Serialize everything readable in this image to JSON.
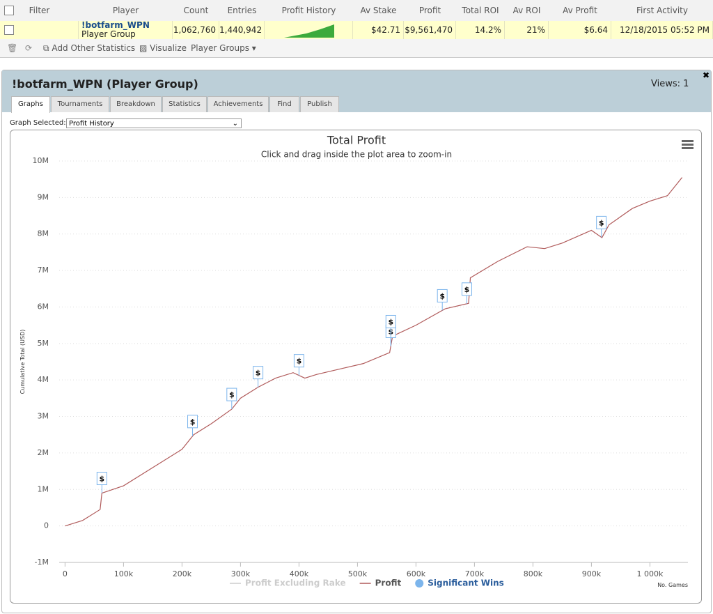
{
  "table": {
    "headers": [
      "Filter",
      "Player",
      "Count",
      "Entries",
      "Profit History",
      "Av Stake",
      "Profit",
      "Total ROI",
      "Av ROI",
      "Av Profit",
      "First Activity"
    ],
    "row": {
      "player": "!botfarm_WPN",
      "player_type": "Player Group",
      "count": "1,062,760",
      "entries": "1,440,942",
      "av_stake": "$42.71",
      "profit": "$9,561,470",
      "total_roi": "14.2%",
      "av_roi": "21%",
      "av_profit": "$6.64",
      "first_activity": "12/18/2015 05:52 PM"
    }
  },
  "toolbar": [
    "Add Other Statistics",
    "Visualize",
    "Player Groups"
  ],
  "panel": {
    "title": "!botfarm_WPN (Player Group)",
    "views": "Views: 1",
    "tabs": [
      "Graphs",
      "Tournaments",
      "Breakdown",
      "Statistics",
      "Achievements",
      "Find",
      "Publish"
    ],
    "graph_selected_label": "Graph Selected:",
    "graph_selected": "Profit History"
  },
  "chart_data": {
    "type": "line",
    "title": "Total Profit",
    "subtitle": "Click and drag inside the plot area to zoom-in",
    "y_label": "Cumulative Total (USD)",
    "x_label": "No. Games",
    "xlim": [
      -10000,
      1065000
    ],
    "ylim": [
      -1000000,
      10000000
    ],
    "xticks": [
      0,
      {
        "value": 100000,
        "label": "100k"
      },
      {
        "value": 200000,
        "label": "200k"
      },
      {
        "value": 300000,
        "label": "300k"
      },
      {
        "value": 400000,
        "label": "400k"
      },
      {
        "value": 500000,
        "label": "500k"
      },
      {
        "value": 600000,
        "label": "600k"
      },
      {
        "value": 700000,
        "label": "700k"
      },
      {
        "value": 800000,
        "label": "800k"
      },
      {
        "value": 900000,
        "label": "900k"
      },
      {
        "value": 1000000,
        "label": "1 000k"
      }
    ],
    "yticks": [
      {
        "value": -1000000,
        "label": "-1M"
      },
      0,
      {
        "value": 1000000,
        "label": "1M"
      },
      {
        "value": 2000000,
        "label": "2M"
      },
      {
        "value": 3000000,
        "label": "3M"
      },
      {
        "value": 4000000,
        "label": "4M"
      },
      {
        "value": 5000000,
        "label": "5M"
      },
      {
        "value": 6000000,
        "label": "6M"
      },
      {
        "value": 7000000,
        "label": "7M"
      },
      {
        "value": 8000000,
        "label": "8M"
      },
      {
        "value": 9000000,
        "label": "9M"
      },
      {
        "value": 10000000,
        "label": "10M"
      }
    ],
    "grid": true,
    "x": [
      0,
      30000,
      60000,
      63000,
      100000,
      150000,
      200000,
      220000,
      250000,
      285000,
      300000,
      330000,
      360000,
      390000,
      410000,
      430000,
      470000,
      510000,
      555000,
      560000,
      600000,
      650000,
      690000,
      693000,
      740000,
      790000,
      820000,
      850000,
      900000,
      918000,
      930000,
      970000,
      1000000,
      1030000,
      1055000
    ],
    "series": [
      {
        "name": "Profit Excluding Rake",
        "color": "#cccccc",
        "visible": false
      },
      {
        "name": "Profit",
        "color": "#b05a5a",
        "values": [
          0,
          150000,
          450000,
          900000,
          1100000,
          1600000,
          2100000,
          2500000,
          2800000,
          3200000,
          3500000,
          3800000,
          4050000,
          4200000,
          4050000,
          4150000,
          4300000,
          4450000,
          4750000,
          5200000,
          5500000,
          5950000,
          6100000,
          6800000,
          7250000,
          7650000,
          7600000,
          7750000,
          8100000,
          7900000,
          8250000,
          8700000,
          8900000,
          9050000,
          9550000
        ]
      }
    ],
    "flags": {
      "name": "Significant Wins",
      "color": "#7cb5ec",
      "label": "$",
      "x": [
        63000,
        218000,
        285000,
        330000,
        400000,
        557000,
        557000,
        645000,
        687000,
        917000
      ]
    }
  }
}
